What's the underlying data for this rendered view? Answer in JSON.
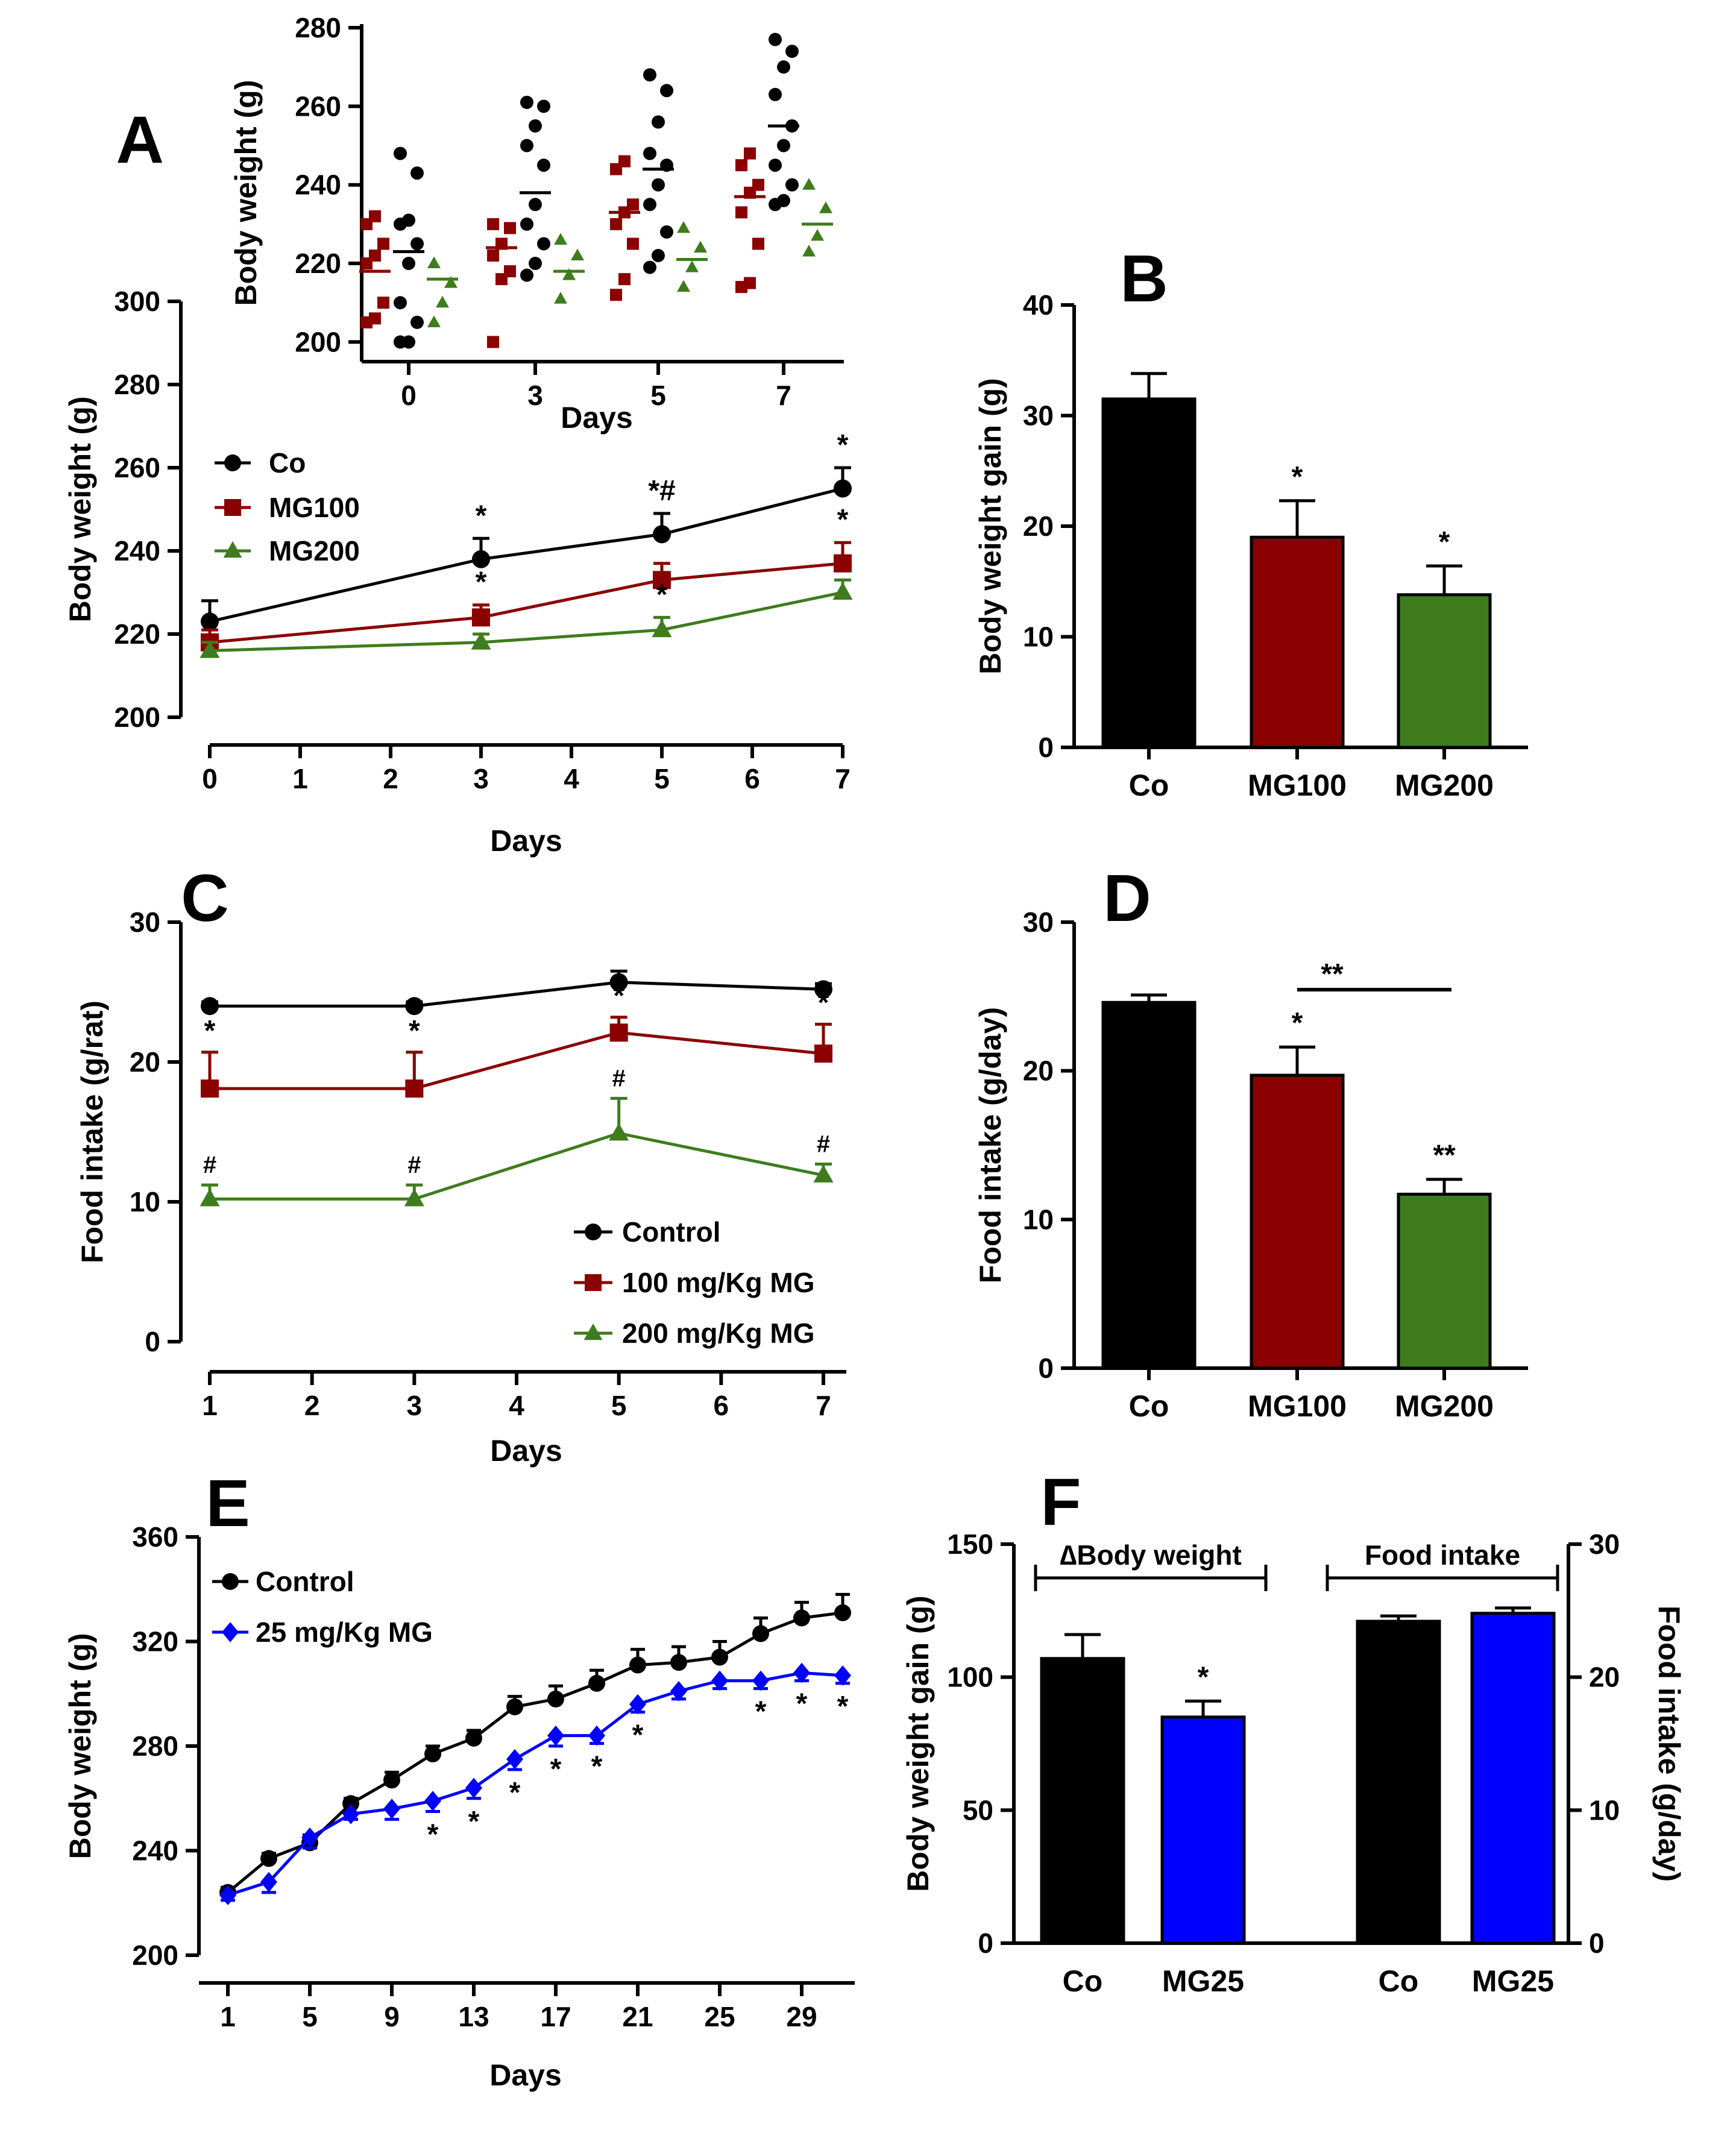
{
  "colors": {
    "co": "#000000",
    "mg100": "#8b0000",
    "mg200": "#3e7c1d",
    "mg25": "#0000ff"
  },
  "panels": {
    "A": {
      "label": "A",
      "chart_data": {
        "type": "line",
        "xlabel": "Days",
        "ylabel": "Body weight (g)",
        "xlim": [
          0,
          7
        ],
        "ylim": [
          200,
          300
        ],
        "xticks": [
          "0",
          "1",
          "2",
          "3",
          "4",
          "5",
          "6",
          "7"
        ],
        "yticks": [
          "200",
          "220",
          "240",
          "260",
          "280",
          "300"
        ],
        "legend": [
          "Co",
          "MG100",
          "MG200"
        ],
        "series": [
          {
            "name": "Co",
            "x": [
              0,
              3,
              5,
              7
            ],
            "y": [
              223,
              238,
              244,
              255
            ],
            "err": [
              5,
              5,
              5,
              5
            ],
            "ann": [
              "",
              "*",
              "*#",
              "*"
            ]
          },
          {
            "name": "MG100",
            "x": [
              0,
              3,
              5,
              7
            ],
            "y": [
              218,
              224,
              233,
              237
            ],
            "err": [
              3,
              3,
              4,
              5
            ],
            "ann": [
              "",
              "*",
              "",
              "*"
            ]
          },
          {
            "name": "MG200",
            "x": [
              0,
              3,
              5,
              7
            ],
            "y": [
              216,
              218,
              221,
              230
            ],
            "err": [
              2,
              2,
              3,
              3
            ],
            "ann": [
              "",
              "",
              "*",
              ""
            ]
          }
        ]
      },
      "inset": {
        "chart_data": {
          "type": "scatter",
          "xlabel": "Days",
          "ylabel": "Body weight (g)",
          "ylim": [
            195,
            280
          ],
          "categories": [
            "0",
            "3",
            "5",
            "7"
          ],
          "yticks": [
            "200",
            "220",
            "240",
            "260",
            "280"
          ],
          "series": [
            {
              "name": "MG100",
              "means": [
                218,
                224,
                233,
                237
              ],
              "points": [
                [
                  205,
                  206,
                  210,
                  220,
                  222,
                  225,
                  230,
                  232
                ],
                [
                  200,
                  216,
                  218,
                  222,
                  225,
                  229,
                  230
                ],
                [
                  212,
                  216,
                  225,
                  230,
                  233,
                  235,
                  244,
                  246
                ],
                [
                  214,
                  215,
                  225,
                  233,
                  238,
                  240,
                  245,
                  248
                ]
              ]
            },
            {
              "name": "Co",
              "means": [
                223,
                238,
                244,
                255
              ],
              "points": [
                [
                  200,
                  200,
                  205,
                  210,
                  220,
                  225,
                  230,
                  231,
                  243,
                  248
                ],
                [
                  217,
                  220,
                  225,
                  230,
                  235,
                  245,
                  250,
                  255,
                  260,
                  261
                ],
                [
                  219,
                  222,
                  228,
                  235,
                  240,
                  245,
                  248,
                  256,
                  264,
                  268
                ],
                [
                  235,
                  236,
                  240,
                  245,
                  250,
                  255,
                  263,
                  270,
                  274,
                  277
                ]
              ]
            },
            {
              "name": "MG200",
              "means": [
                216,
                218,
                221,
                230
              ],
              "points": [
                [
                  205,
                  210,
                  215,
                  220
                ],
                [
                  211,
                  217,
                  222,
                  226
                ],
                [
                  214,
                  219,
                  224,
                  229
                ],
                [
                  223,
                  227,
                  234,
                  240
                ]
              ]
            }
          ]
        }
      }
    },
    "B": {
      "label": "B",
      "chart_data": {
        "type": "bar",
        "ylabel": "Body weight gain (g)",
        "ylim": [
          0,
          40
        ],
        "yticks": [
          "0",
          "10",
          "20",
          "30",
          "40"
        ],
        "categories": [
          "Co",
          "MG100",
          "MG200"
        ],
        "values": [
          31.5,
          19,
          13.8
        ],
        "err": [
          2.3,
          3.3,
          2.6
        ],
        "ann": [
          "",
          "*",
          "*"
        ]
      }
    },
    "C": {
      "label": "C",
      "chart_data": {
        "type": "line",
        "xlabel": "Days",
        "ylabel": "Food intake (g/rat)",
        "xlim": [
          1,
          7
        ],
        "ylim": [
          0,
          30
        ],
        "xticks": [
          "1",
          "2",
          "3",
          "4",
          "5",
          "6",
          "7"
        ],
        "yticks": [
          "0",
          "10",
          "20",
          "30"
        ],
        "legend": [
          "Control",
          "100 mg/Kg MG",
          "200 mg/Kg MG"
        ],
        "series": [
          {
            "name": "Control",
            "x": [
              1,
              3,
              5,
              7
            ],
            "y": [
              24,
              24,
              25.7,
              25.2
            ],
            "err": [
              0.3,
              0.3,
              0.8,
              0.4
            ],
            "ann": [
              "",
              "",
              "",
              ""
            ]
          },
          {
            "name": "100 mg/Kg MG",
            "x": [
              1,
              3,
              5,
              7
            ],
            "y": [
              18.1,
              18.1,
              22.1,
              20.6
            ],
            "err": [
              2.6,
              2.6,
              1.1,
              2.1
            ],
            "ann": [
              "*",
              "*",
              "*",
              "*"
            ]
          },
          {
            "name": "200 mg/Kg MG",
            "x": [
              1,
              3,
              5,
              7
            ],
            "y": [
              10.2,
              10.2,
              14.9,
              11.9
            ],
            "err": [
              1,
              1,
              2.5,
              0.8
            ],
            "ann": [
              "#",
              "#",
              "#",
              "#"
            ]
          }
        ]
      }
    },
    "D": {
      "label": "D",
      "chart_data": {
        "type": "bar",
        "ylabel": "Food intake (g/day)",
        "ylim": [
          0,
          30
        ],
        "yticks": [
          "0",
          "10",
          "20",
          "30"
        ],
        "categories": [
          "Co",
          "MG100",
          "MG200"
        ],
        "values": [
          24.6,
          19.7,
          11.7
        ],
        "err": [
          0.5,
          1.9,
          1
        ],
        "ann": [
          "",
          "*",
          "**"
        ],
        "bracket_label": "**"
      }
    },
    "E": {
      "label": "E",
      "chart_data": {
        "type": "line",
        "xlabel": "Days",
        "ylabel": "Body weight (g)",
        "xlim": [
          0,
          32
        ],
        "ylim": [
          200,
          360
        ],
        "xticks": [
          "1",
          "5",
          "9",
          "13",
          "17",
          "21",
          "25",
          "29"
        ],
        "yticks": [
          "200",
          "240",
          "280",
          "320",
          "360"
        ],
        "legend": [
          "Control",
          "25 mg/Kg MG"
        ],
        "series": [
          {
            "name": "Control",
            "x": [
              1,
              3,
              5,
              7,
              9,
              11,
              13,
              15,
              17,
              19,
              21,
              23,
              25,
              27,
              29,
              31
            ],
            "y": [
              224,
              237,
              243,
              258,
              267,
              277,
              283,
              295,
              298,
              304,
              311,
              312,
              314,
              323,
              329,
              331
            ],
            "err": [
              2,
              2,
              3,
              2,
              3,
              3,
              3,
              4,
              5,
              5,
              6,
              6,
              6,
              6,
              6,
              7
            ],
            "ann": []
          },
          {
            "name": "25 mg/Kg MG",
            "x": [
              1,
              3,
              5,
              7,
              9,
              11,
              13,
              15,
              17,
              19,
              21,
              23,
              25,
              27,
              29,
              31
            ],
            "y": [
              223,
              228,
              245,
              254,
              256,
              259,
              264,
              275,
              284,
              284,
              296,
              301,
              305,
              305,
              308,
              307
            ],
            "err": [
              2,
              4,
              4,
              2,
              4,
              4,
              4,
              4,
              4,
              3,
              3,
              3,
              3,
              3,
              3,
              3
            ],
            "ann": [
              "",
              "",
              "",
              "",
              "",
              "*",
              "*",
              "*",
              "*",
              "*",
              "*",
              "",
              "",
              "*",
              "*",
              "*"
            ]
          }
        ]
      }
    },
    "F": {
      "label": "F",
      "chart_data": {
        "type": "bar",
        "ylabel": "Body weight gain (g)",
        "ylabel_right": "Food intake (g/day)",
        "ylim": [
          0,
          150
        ],
        "ylim_right": [
          0,
          30
        ],
        "yticks": [
          "0",
          "50",
          "100",
          "150"
        ],
        "yticks_right": [
          "0",
          "10",
          "20",
          "30"
        ],
        "groups": [
          "∆Body weight",
          "Food intake"
        ],
        "categories": [
          "Co",
          "MG25",
          "Co",
          "MG25"
        ],
        "values": [
          107,
          85,
          24.2,
          24.8
        ],
        "err": [
          9,
          6,
          0.4,
          0.4
        ],
        "axis": [
          "left",
          "left",
          "right",
          "right"
        ],
        "ann": [
          "",
          "*",
          "",
          ""
        ]
      }
    }
  }
}
